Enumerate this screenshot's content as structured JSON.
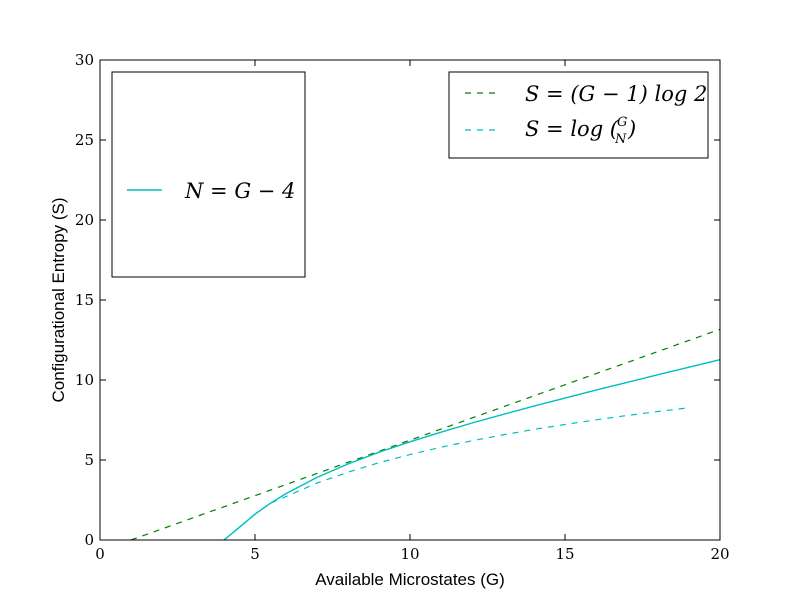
{
  "chart_data": {
    "type": "line",
    "title": "",
    "xlabel": "Available Microstates (G)",
    "ylabel": "Configurational Entropy (S)",
    "xlim": [
      0,
      20
    ],
    "ylim": [
      0,
      30
    ],
    "xticks": [
      0,
      5,
      10,
      15,
      20
    ],
    "yticks": [
      0,
      5,
      10,
      15,
      20,
      25,
      30
    ],
    "grid": false,
    "series": [
      {
        "name": "S = (G − 1) log 2",
        "style": "dashed",
        "color": "#008000",
        "x": [
          1,
          20
        ],
        "y": [
          0,
          13.17
        ]
      },
      {
        "name": "S = log (G choose N)",
        "style": "dashed",
        "color": "#00bfbf",
        "x": [
          4,
          4.5,
          5,
          5.5,
          6,
          7,
          8,
          9,
          10,
          11,
          12,
          13,
          14,
          15,
          16,
          17,
          18,
          19
        ],
        "y": [
          0,
          0.8,
          1.61,
          2.3,
          2.71,
          3.56,
          4.24,
          4.83,
          5.34,
          5.8,
          6.2,
          6.57,
          6.91,
          7.22,
          7.51,
          7.78,
          8.03,
          8.27
        ]
      },
      {
        "name": "N = G − 4",
        "style": "solid",
        "color": "#00bfbf",
        "x": [
          4,
          4.5,
          5,
          5.5,
          6,
          7,
          8,
          9,
          10,
          11,
          12,
          13,
          14,
          15,
          16,
          17,
          18,
          19,
          20
        ],
        "y": [
          0,
          0.8,
          1.61,
          2.3,
          2.9,
          3.91,
          4.75,
          5.49,
          6.14,
          6.74,
          7.31,
          7.85,
          8.37,
          8.87,
          9.37,
          9.85,
          10.33,
          10.8,
          11.27
        ]
      }
    ],
    "legends": [
      {
        "placement": "upper-left",
        "entries": [
          "N = G − 4"
        ]
      },
      {
        "placement": "upper-right",
        "entries": [
          "S = (G − 1) log 2",
          "S = log (G choose N)"
        ]
      }
    ]
  }
}
